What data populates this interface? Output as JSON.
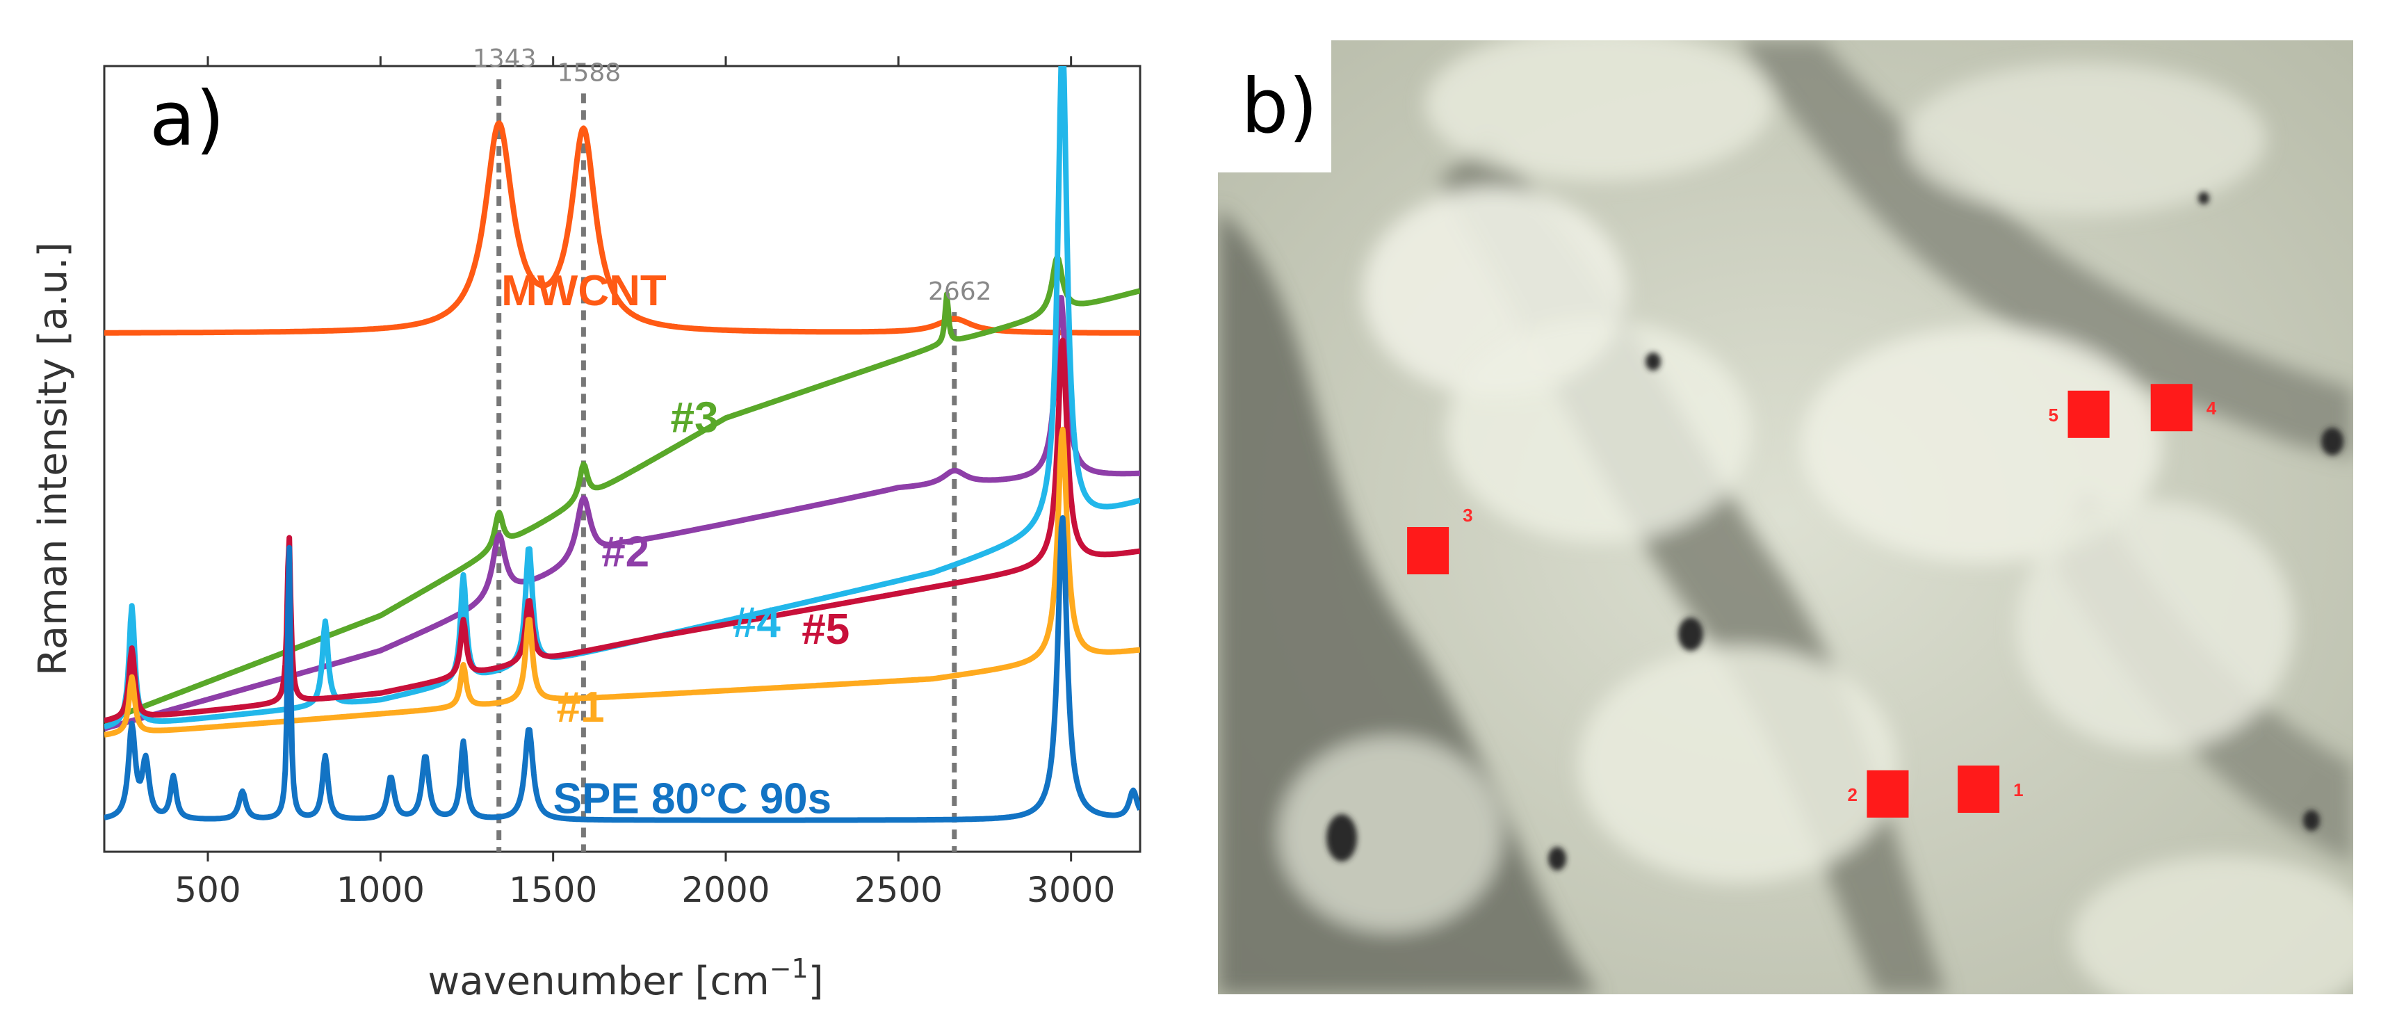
{
  "panel_a_label": "a)",
  "panel_b_label": "b)",
  "chart_data": {
    "type": "line",
    "xlabel": "wavenumber [cm",
    "xlabel_sup": "−1",
    "xlabel_end": "]",
    "ylabel": "Raman intensity [a.u.]",
    "xlim": [
      200,
      3200
    ],
    "ylim": [
      0,
      1
    ],
    "xticks": [
      500,
      1000,
      1500,
      2000,
      2500,
      3000
    ],
    "grid": false,
    "peak_markers": [
      {
        "x": 1343,
        "label": "1343",
        "y_top": 1.06
      },
      {
        "x": 1588,
        "label": "1588",
        "y_top": 1.04
      },
      {
        "x": 2662,
        "label": "2662",
        "y_top": 0.73
      }
    ],
    "series": [
      {
        "name": "MWCNT",
        "label": "MWCNT",
        "color": "#ff5a14",
        "label_x": 1350,
        "label_y": 0.74,
        "baseline": [
          [
            200,
            0.7
          ],
          [
            1000,
            0.7
          ],
          [
            2500,
            0.7
          ],
          [
            3200,
            0.7
          ]
        ],
        "peaks": [
          [
            1343,
            0.29,
            48
          ],
          [
            1588,
            0.28,
            42
          ],
          [
            2662,
            0.02,
            60
          ]
        ]
      },
      {
        "name": "#3",
        "label": "#3",
        "color": "#59a829",
        "label_x": 1840,
        "label_y": 0.56,
        "baseline": [
          [
            200,
            0.15
          ],
          [
            1000,
            0.3
          ],
          [
            2000,
            0.58
          ],
          [
            2600,
            0.68
          ],
          [
            3200,
            0.76
          ]
        ],
        "peaks": [
          [
            1343,
            0.05,
            14
          ],
          [
            1588,
            0.05,
            14
          ],
          [
            2640,
            0.07,
            6
          ],
          [
            2960,
            0.08,
            18
          ]
        ]
      },
      {
        "name": "#2",
        "label": "#2",
        "color": "#8e3ea8",
        "label_x": 1640,
        "label_y": 0.37,
        "baseline": [
          [
            200,
            0.14
          ],
          [
            1000,
            0.25
          ],
          [
            1700,
            0.4
          ],
          [
            2500,
            0.48
          ],
          [
            3200,
            0.5
          ]
        ],
        "peaks": [
          [
            1343,
            0.09,
            22
          ],
          [
            1588,
            0.09,
            24
          ],
          [
            2662,
            0.02,
            40
          ],
          [
            2970,
            0.26,
            18
          ]
        ]
      },
      {
        "name": "#4",
        "label": "#4",
        "color": "#22b7ea",
        "label_x": 2020,
        "label_y": 0.27,
        "baseline": [
          [
            200,
            0.14
          ],
          [
            1000,
            0.18
          ],
          [
            1800,
            0.27
          ],
          [
            2600,
            0.36
          ],
          [
            3200,
            0.46
          ]
        ],
        "peaks": [
          [
            280,
            0.17,
            10
          ],
          [
            840,
            0.12,
            10
          ],
          [
            1240,
            0.15,
            10
          ],
          [
            1430,
            0.17,
            12
          ],
          [
            2975,
            0.7,
            16
          ]
        ]
      },
      {
        "name": "#5",
        "label": "#5",
        "color": "#c8103a",
        "label_x": 2220,
        "label_y": 0.26,
        "baseline": [
          [
            200,
            0.15
          ],
          [
            1000,
            0.19
          ],
          [
            1800,
            0.27
          ],
          [
            2600,
            0.34
          ],
          [
            3200,
            0.39
          ]
        ],
        "peaks": [
          [
            280,
            0.1,
            10
          ],
          [
            735,
            0.24,
            6
          ],
          [
            1240,
            0.08,
            10
          ],
          [
            1430,
            0.09,
            12
          ],
          [
            2975,
            0.32,
            16
          ]
        ]
      },
      {
        "name": "#1",
        "label": "#1",
        "color": "#ffaa1e",
        "label_x": 1510,
        "label_y": 0.15,
        "baseline": [
          [
            200,
            0.13
          ],
          [
            1500,
            0.18
          ],
          [
            2600,
            0.21
          ],
          [
            3200,
            0.25
          ]
        ],
        "peaks": [
          [
            280,
            0.08,
            10
          ],
          [
            1240,
            0.06,
            10
          ],
          [
            1430,
            0.12,
            12
          ],
          [
            2975,
            0.33,
            16
          ]
        ]
      },
      {
        "name": "SPE 80°C 90s",
        "label": "SPE 80°C 90s",
        "color": "#1273c4",
        "label_x": 1500,
        "label_y": 0.02,
        "baseline": [
          [
            200,
            0.01
          ],
          [
            3200,
            0.01
          ]
        ],
        "peaks": [
          [
            280,
            0.13,
            12
          ],
          [
            320,
            0.08,
            12
          ],
          [
            400,
            0.06,
            10
          ],
          [
            600,
            0.04,
            12
          ],
          [
            735,
            0.4,
            5
          ],
          [
            840,
            0.09,
            10
          ],
          [
            1030,
            0.06,
            12
          ],
          [
            1130,
            0.09,
            12
          ],
          [
            1240,
            0.11,
            10
          ],
          [
            1430,
            0.13,
            14
          ],
          [
            2975,
            0.43,
            16
          ],
          [
            3180,
            0.04,
            14
          ]
        ]
      }
    ]
  },
  "micrograph": {
    "alt": "optical micrograph of sample surface",
    "spots": [
      {
        "id": "1",
        "label": "1",
        "fx": 0.67,
        "fy": 0.785
      },
      {
        "id": "2",
        "label": "2",
        "fx": 0.59,
        "fy": 0.79
      },
      {
        "id": "3",
        "label": "3",
        "fx": 0.185,
        "fy": 0.535
      },
      {
        "id": "4",
        "label": "4",
        "fx": 0.84,
        "fy": 0.385
      },
      {
        "id": "5",
        "label": "5",
        "fx": 0.767,
        "fy": 0.392
      }
    ]
  }
}
